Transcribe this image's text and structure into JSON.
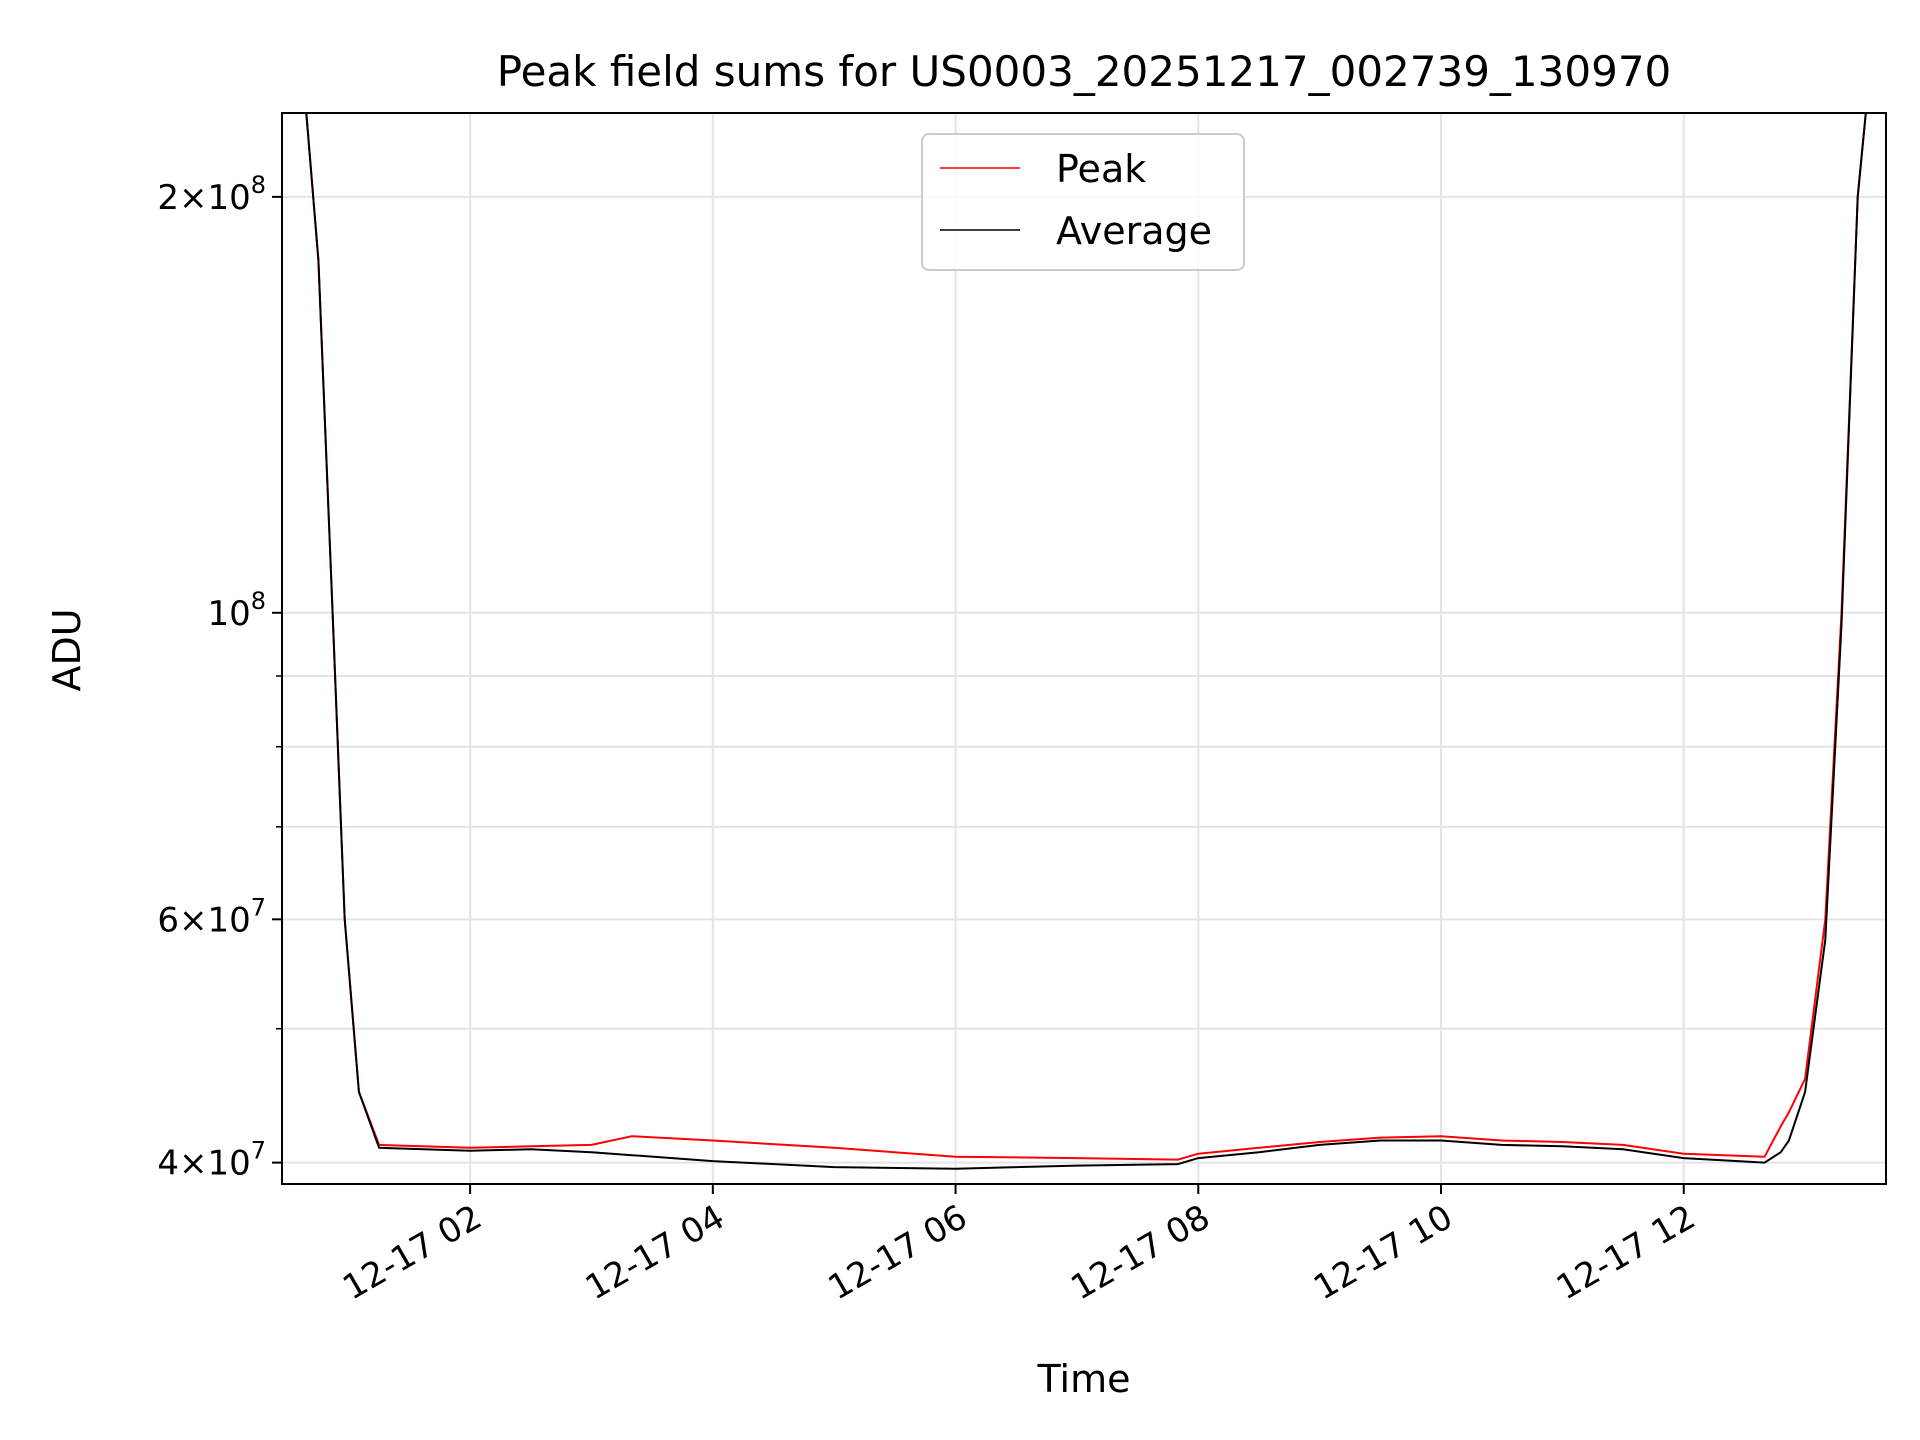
{
  "chart_data": {
    "type": "line",
    "title": "Peak field sums for US0003_20251217_002739_130970",
    "xlabel": "Time",
    "ylabel": "ADU",
    "yscale": "log",
    "xlim": [
      "2025-12-17 00:27",
      "2025-12-17 13:40"
    ],
    "ylim": [
      38600000,
      230000000
    ],
    "grid": true,
    "legend_position": "top-center",
    "x_ticks": [
      {
        "value": "2025-12-17 02:00",
        "label": "12-17 02"
      },
      {
        "value": "2025-12-17 04:00",
        "label": "12-17 04"
      },
      {
        "value": "2025-12-17 06:00",
        "label": "12-17 06"
      },
      {
        "value": "2025-12-17 08:00",
        "label": "12-17 08"
      },
      {
        "value": "2025-12-17 10:00",
        "label": "12-17 10"
      },
      {
        "value": "2025-12-17 12:00",
        "label": "12-17 12"
      }
    ],
    "y_ticks": [
      {
        "value": 40000000,
        "mant": "4",
        "exp": "7"
      },
      {
        "value": 60000000,
        "mant": "6",
        "exp": "7"
      },
      {
        "value": 100000000,
        "mant": "",
        "exp": "8"
      },
      {
        "value": 200000000,
        "mant": "2",
        "exp": "8"
      }
    ],
    "y_minor_ticks": [
      50000000,
      70000000,
      80000000,
      90000000
    ],
    "series": [
      {
        "name": "Peak",
        "color": "#ff0000",
        "points": [
          [
            "2025-12-17 00:39",
            230000000
          ],
          [
            "2025-12-17 00:45",
            180000000
          ],
          [
            "2025-12-17 00:52",
            100000000
          ],
          [
            "2025-12-17 00:58",
            60000000
          ],
          [
            "2025-12-17 01:05",
            45000000
          ],
          [
            "2025-12-17 01:15",
            41200000
          ],
          [
            "2025-12-17 02:00",
            41000000
          ],
          [
            "2025-12-17 02:30",
            41100000
          ],
          [
            "2025-12-17 03:00",
            41200000
          ],
          [
            "2025-12-17 03:20",
            41800000
          ],
          [
            "2025-12-17 04:00",
            41500000
          ],
          [
            "2025-12-17 05:00",
            41000000
          ],
          [
            "2025-12-17 06:00",
            40400000
          ],
          [
            "2025-12-17 07:00",
            40300000
          ],
          [
            "2025-12-17 07:50",
            40200000
          ],
          [
            "2025-12-17 08:00",
            40600000
          ],
          [
            "2025-12-17 08:30",
            41000000
          ],
          [
            "2025-12-17 09:00",
            41400000
          ],
          [
            "2025-12-17 09:30",
            41700000
          ],
          [
            "2025-12-17 10:00",
            41800000
          ],
          [
            "2025-12-17 10:30",
            41500000
          ],
          [
            "2025-12-17 11:00",
            41400000
          ],
          [
            "2025-12-17 11:30",
            41200000
          ],
          [
            "2025-12-17 12:00",
            40600000
          ],
          [
            "2025-12-17 12:40",
            40400000
          ],
          [
            "2025-12-17 12:48",
            42500000
          ],
          [
            "2025-12-17 12:52",
            43500000
          ],
          [
            "2025-12-17 13:00",
            46000000
          ],
          [
            "2025-12-17 13:10",
            60000000
          ],
          [
            "2025-12-17 13:18",
            100000000
          ],
          [
            "2025-12-17 13:26",
            200000000
          ],
          [
            "2025-12-17 13:30",
            230000000
          ]
        ]
      },
      {
        "name": "Average",
        "color": "#000000",
        "points": [
          [
            "2025-12-17 00:39",
            230000000
          ],
          [
            "2025-12-17 00:45",
            180000000
          ],
          [
            "2025-12-17 00:52",
            100000000
          ],
          [
            "2025-12-17 00:58",
            60000000
          ],
          [
            "2025-12-17 01:05",
            45000000
          ],
          [
            "2025-12-17 01:15",
            41000000
          ],
          [
            "2025-12-17 02:00",
            40800000
          ],
          [
            "2025-12-17 02:30",
            40900000
          ],
          [
            "2025-12-17 03:00",
            40700000
          ],
          [
            "2025-12-17 03:20",
            40500000
          ],
          [
            "2025-12-17 04:00",
            40100000
          ],
          [
            "2025-12-17 05:00",
            39700000
          ],
          [
            "2025-12-17 06:00",
            39600000
          ],
          [
            "2025-12-17 07:00",
            39800000
          ],
          [
            "2025-12-17 07:50",
            39900000
          ],
          [
            "2025-12-17 08:00",
            40300000
          ],
          [
            "2025-12-17 08:30",
            40700000
          ],
          [
            "2025-12-17 09:00",
            41200000
          ],
          [
            "2025-12-17 09:30",
            41500000
          ],
          [
            "2025-12-17 10:00",
            41500000
          ],
          [
            "2025-12-17 10:30",
            41200000
          ],
          [
            "2025-12-17 11:00",
            41100000
          ],
          [
            "2025-12-17 11:30",
            40900000
          ],
          [
            "2025-12-17 12:00",
            40300000
          ],
          [
            "2025-12-17 12:40",
            40000000
          ],
          [
            "2025-12-17 12:48",
            40700000
          ],
          [
            "2025-12-17 12:52",
            41500000
          ],
          [
            "2025-12-17 13:00",
            45000000
          ],
          [
            "2025-12-17 13:10",
            58000000
          ],
          [
            "2025-12-17 13:18",
            98000000
          ],
          [
            "2025-12-17 13:26",
            200000000
          ],
          [
            "2025-12-17 13:30",
            230000000
          ]
        ]
      }
    ]
  }
}
